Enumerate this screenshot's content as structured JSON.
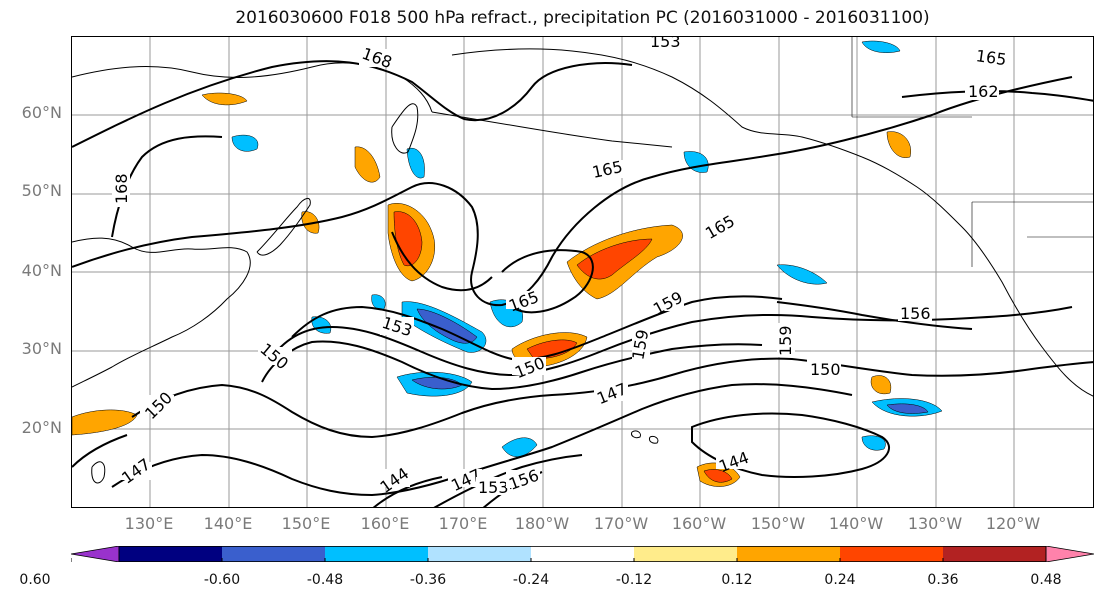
{
  "title": "2016030600 F018 500 hPa refract., precipitation PC (2016031000 - 2016031100)",
  "lat_labels": [
    "60°N",
    "50°N",
    "40°N",
    "30°N",
    "20°N"
  ],
  "lon_labels": [
    "130°E",
    "140°E",
    "150°E",
    "160°E",
    "170°E",
    "180°W",
    "170°W",
    "160°W",
    "150°W",
    "140°W",
    "130°W",
    "120°W"
  ],
  "colorbar": {
    "ticks": [
      "-0.60",
      "-0.48",
      "-0.36",
      "-0.24",
      "-0.12",
      "0.12",
      "0.24",
      "0.36",
      "0.48",
      "0.60"
    ],
    "colors": [
      "#9932cc",
      "#000080",
      "#3a5fcd",
      "#00bfff",
      "#b0e2ff",
      "#ffffff",
      "#ffec8b",
      "#ffa500",
      "#ff4500",
      "#b22222",
      "#ff82ab"
    ]
  },
  "contour_labels": [
    "168",
    "153",
    "165",
    "162",
    "168",
    "165",
    "165",
    "165",
    "153",
    "159",
    "156",
    "150",
    "159",
    "150",
    "159",
    "150",
    "147",
    "147",
    "144",
    "147",
    "150",
    "153",
    "156",
    "144"
  ]
}
